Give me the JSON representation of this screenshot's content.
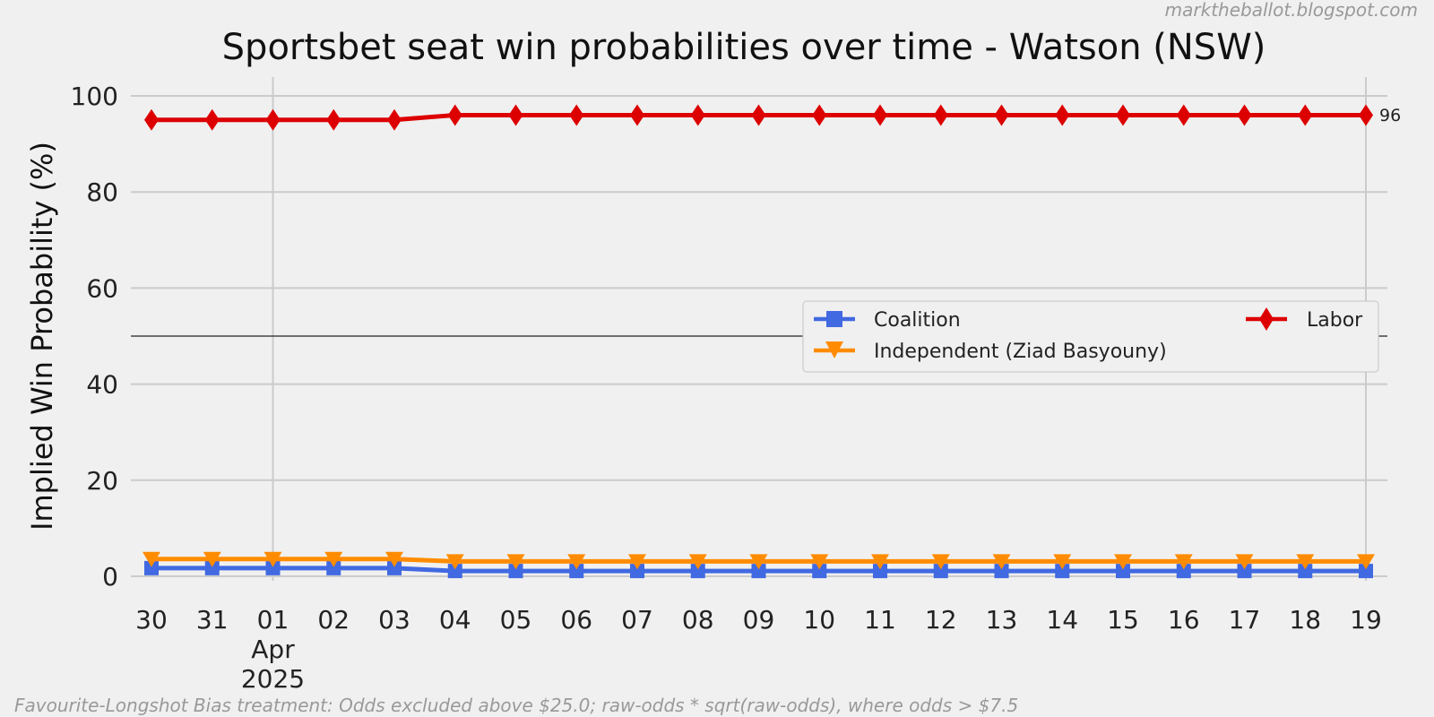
{
  "chart_data": {
    "type": "line",
    "title": "Sportsbet seat win probabilities over time - Watson (NSW)",
    "watermark": "marktheballot.blogspot.com",
    "footnote": "Favourite-Longshot Bias treatment: Odds excluded above $25.0; raw-odds * sqrt(raw-odds), where odds > $7.5",
    "ylabel": "Implied Win Probability (%)",
    "xlabel": "",
    "ylim": [
      -2,
      105
    ],
    "yticks": [
      0,
      20,
      40,
      60,
      80,
      100
    ],
    "reference_line": 50,
    "x": [
      "2025-03-30",
      "2025-03-31",
      "2025-04-01",
      "2025-04-02",
      "2025-04-03",
      "2025-04-04",
      "2025-04-05",
      "2025-04-06",
      "2025-04-07",
      "2025-04-08",
      "2025-04-09",
      "2025-04-10",
      "2025-04-11",
      "2025-04-12",
      "2025-04-13",
      "2025-04-14",
      "2025-04-15",
      "2025-04-16",
      "2025-04-17",
      "2025-04-18",
      "2025-04-19"
    ],
    "xtick_labels": [
      "30",
      "31",
      "01",
      "02",
      "03",
      "04",
      "05",
      "06",
      "07",
      "08",
      "09",
      "10",
      "11",
      "12",
      "13",
      "14",
      "15",
      "16",
      "17",
      "18",
      "19"
    ],
    "xtick_sublabel": {
      "tick": "01",
      "lines": [
        "Apr",
        "2025"
      ]
    },
    "grid": true,
    "legend_position": "center-right",
    "series": [
      {
        "name": "Coalition",
        "color": "#4169e1",
        "marker": "square",
        "values": [
          1.7,
          1.7,
          1.7,
          1.7,
          1.7,
          1.1,
          1.1,
          1.1,
          1.1,
          1.1,
          1.1,
          1.1,
          1.1,
          1.1,
          1.1,
          1.1,
          1.1,
          1.1,
          1.1,
          1.1,
          1.1
        ]
      },
      {
        "name": "Independent (Ziad Basyouny)",
        "color": "#ff8c00",
        "marker": "triangle-down",
        "values": [
          3.6,
          3.6,
          3.6,
          3.6,
          3.6,
          3.1,
          3.1,
          3.1,
          3.1,
          3.1,
          3.1,
          3.1,
          3.1,
          3.1,
          3.1,
          3.1,
          3.1,
          3.1,
          3.1,
          3.1,
          3.1
        ]
      },
      {
        "name": "Labor",
        "color": "#dd0000",
        "marker": "diamond",
        "values": [
          95,
          95,
          95,
          95,
          95,
          96,
          96,
          96,
          96,
          96,
          96,
          96,
          96,
          96,
          96,
          96,
          96,
          96,
          96,
          96,
          96
        ]
      }
    ],
    "end_label": "96"
  }
}
